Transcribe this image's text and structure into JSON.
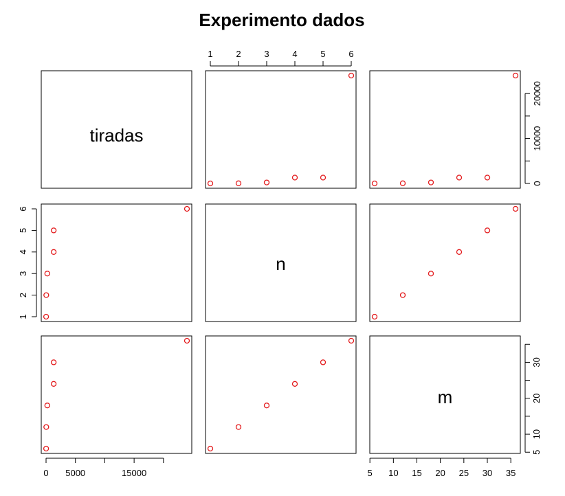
{
  "chart_data": {
    "type": "scatter",
    "title": "Experimento dados",
    "variables": [
      "tiradas",
      "n",
      "m"
    ],
    "observations": [
      {
        "tiradas": 6,
        "n": 1,
        "m": 6
      },
      {
        "tiradas": 36,
        "n": 2,
        "m": 12
      },
      {
        "tiradas": 216,
        "n": 3,
        "m": 18
      },
      {
        "tiradas": 1296,
        "n": 4,
        "m": 24
      },
      {
        "tiradas": 1296,
        "n": 5,
        "m": 30
      },
      {
        "tiradas": 24000,
        "n": 6,
        "m": 36
      }
    ],
    "axes": {
      "tiradas": {
        "range": [
          0,
          24000
        ],
        "ticks_top_right": [
          0,
          10000,
          20000
        ],
        "ticks_bottom": [
          0,
          5000,
          15000
        ]
      },
      "n": {
        "range": [
          1,
          6
        ],
        "ticks": [
          1,
          2,
          3,
          4,
          5,
          6
        ]
      },
      "m": {
        "range": [
          6,
          36
        ],
        "ticks_right": [
          5,
          10,
          20,
          30
        ],
        "ticks_bottom": [
          5,
          10,
          15,
          20,
          25,
          30,
          35
        ]
      }
    },
    "point_color": "#e31a1c",
    "grid": false,
    "legend": "none"
  }
}
